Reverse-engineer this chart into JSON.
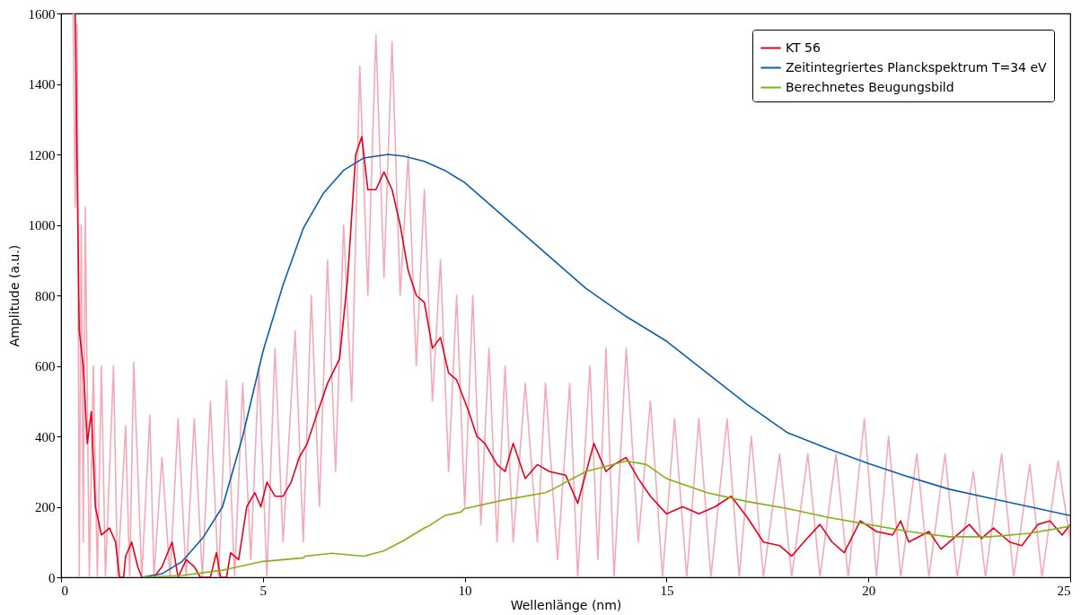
{
  "chart_data": {
    "type": "line",
    "xlabel": "Wellenlänge (nm)",
    "ylabel": "Amplitude (a.u.)",
    "xlim": [
      0,
      25
    ],
    "ylim": [
      0,
      1600
    ],
    "xticks": [
      0,
      5,
      10,
      15,
      20,
      25
    ],
    "yticks": [
      0,
      200,
      400,
      600,
      800,
      1000,
      1200,
      1400,
      1600
    ],
    "grid": false,
    "legend": "top right",
    "marker": "none",
    "line_style": "solid",
    "series": [
      {
        "color": "#f4aab6",
        "x": [
          0.3,
          0.35,
          0.4,
          0.45,
          0.5,
          0.55,
          0.6,
          0.7,
          0.8,
          0.9,
          1.0,
          1.1,
          1.3,
          1.4,
          1.6,
          1.7,
          1.8,
          2.0,
          2.2,
          2.3,
          2.5,
          2.7,
          2.9,
          3.1,
          3.3,
          3.5,
          3.7,
          3.9,
          4.1,
          4.3,
          4.5,
          4.7,
          4.9,
          5.1,
          5.3,
          5.5,
          5.8,
          6.0,
          6.2,
          6.4,
          6.6,
          6.8,
          7.0,
          7.2,
          7.4,
          7.6,
          7.8,
          8.0,
          8.2,
          8.4,
          8.6,
          8.8,
          9.0,
          9.2,
          9.4,
          9.6,
          9.8,
          10.0,
          10.2,
          10.4,
          10.6,
          10.8,
          11.0,
          11.2,
          11.5,
          11.8,
          12.0,
          12.3,
          12.6,
          12.8,
          13.1,
          13.3,
          13.5,
          13.7,
          14.0,
          14.3,
          14.6,
          14.9,
          15.2,
          15.5,
          15.8,
          16.1,
          16.5,
          16.8,
          17.1,
          17.4,
          17.8,
          18.1,
          18.5,
          18.8,
          19.2,
          19.5,
          19.9,
          20.2,
          20.5,
          20.8,
          21.2,
          21.5,
          21.9,
          22.2,
          22.6,
          22.9,
          23.3,
          23.6,
          24.0,
          24.3,
          24.7,
          25
        ],
        "values": [
          1600,
          1050,
          1570,
          0,
          1000,
          100,
          1050,
          0,
          600,
          0,
          600,
          0,
          600,
          0,
          430,
          0,
          610,
          0,
          460,
          0,
          340,
          0,
          450,
          0,
          450,
          0,
          500,
          0,
          560,
          0,
          550,
          50,
          600,
          0,
          650,
          100,
          700,
          100,
          800,
          200,
          900,
          300,
          1000,
          500,
          1450,
          800,
          1540,
          850,
          1520,
          800,
          1200,
          600,
          1100,
          500,
          900,
          300,
          800,
          200,
          800,
          150,
          650,
          100,
          600,
          100,
          550,
          100,
          550,
          50,
          550,
          0,
          600,
          50,
          650,
          0,
          650,
          100,
          500,
          0,
          450,
          0,
          450,
          0,
          450,
          0,
          400,
          0,
          350,
          0,
          350,
          0,
          350,
          0,
          450,
          0,
          400,
          0,
          350,
          0,
          350,
          0,
          300,
          0,
          350,
          0,
          320,
          0,
          330,
          100
        ]
      },
      {
        "name": "KT 56",
        "color": "#e8001c",
        "x": [
          0.35,
          0.45,
          0.55,
          0.65,
          0.75,
          0.85,
          1.0,
          1.2,
          1.35,
          1.45,
          1.55,
          1.6,
          1.75,
          1.9,
          2.0,
          2.3,
          2.5,
          2.75,
          2.9,
          3.1,
          3.3,
          3.45,
          3.7,
          3.85,
          3.95,
          4.1,
          4.2,
          4.4,
          4.6,
          4.8,
          4.95,
          5.1,
          5.3,
          5.5,
          5.7,
          5.9,
          6.1,
          6.3,
          6.6,
          6.9,
          7.1,
          7.3,
          7.45,
          7.6,
          7.8,
          8.0,
          8.2,
          8.4,
          8.6,
          8.8,
          9.0,
          9.2,
          9.4,
          9.6,
          9.8,
          10.0,
          10.1,
          10.3,
          10.5,
          10.8,
          11.0,
          11.2,
          11.5,
          11.8,
          12.1,
          12.5,
          12.8,
          13.2,
          13.5,
          13.7,
          14.0,
          14.3,
          14.6,
          15.0,
          15.4,
          15.8,
          16.2,
          16.6,
          17.0,
          17.4,
          17.8,
          18.1,
          18.4,
          18.8,
          19.1,
          19.4,
          19.8,
          20.2,
          20.6,
          20.8,
          21.0,
          21.5,
          21.8,
          22.1,
          22.5,
          22.8,
          23.1,
          23.5,
          23.8,
          24.2,
          24.5,
          24.8,
          25
        ],
        "values": [
          1600,
          700,
          600,
          380,
          470,
          200,
          120,
          140,
          100,
          0,
          0,
          60,
          100,
          30,
          0,
          0,
          30,
          100,
          0,
          50,
          30,
          0,
          0,
          70,
          0,
          0,
          70,
          50,
          200,
          240,
          200,
          270,
          230,
          230,
          270,
          340,
          380,
          450,
          550,
          620,
          850,
          1200,
          1250,
          1100,
          1100,
          1150,
          1100,
          1000,
          870,
          800,
          780,
          650,
          680,
          580,
          560,
          500,
          470,
          400,
          380,
          320,
          300,
          380,
          280,
          320,
          300,
          290,
          210,
          380,
          300,
          320,
          340,
          280,
          230,
          180,
          200,
          180,
          200,
          230,
          170,
          100,
          90,
          60,
          100,
          150,
          100,
          70,
          160,
          130,
          120,
          160,
          100,
          130,
          80,
          110,
          150,
          110,
          140,
          100,
          90,
          150,
          160,
          120,
          150
        ]
      },
      {
        "name": "Zeitintegriertes Planckspektrum T=34 eV",
        "color": "#0a5fad",
        "x": [
          2,
          2.5,
          3,
          3.5,
          4,
          4.5,
          5,
          5.5,
          6,
          6.5,
          7,
          7.5,
          8.1,
          8.5,
          9,
          9.5,
          10,
          11,
          12,
          13,
          14,
          15,
          16,
          17,
          18,
          19,
          20,
          21,
          22,
          23,
          24,
          25
        ],
        "values": [
          0,
          10,
          45,
          110,
          200,
          400,
          640,
          830,
          990,
          1090,
          1155,
          1190,
          1200,
          1195,
          1180,
          1155,
          1120,
          1020,
          920,
          820,
          740,
          670,
          580,
          490,
          410,
          365,
          323,
          285,
          250,
          225,
          200,
          175
        ]
      },
      {
        "name": "Berechnetes Beugungsbild",
        "color": "#7fb317",
        "x": [
          2,
          3,
          4,
          5,
          6,
          6.05,
          6.7,
          7.5,
          8,
          8.5,
          9,
          9.1,
          9.5,
          9.9,
          10,
          11,
          12,
          12.1,
          13,
          14,
          14.5,
          15,
          16,
          17,
          18,
          19,
          20,
          21,
          22,
          23,
          24,
          25
        ],
        "values": [
          0,
          5,
          20,
          45,
          55,
          60,
          68,
          60,
          75,
          105,
          140,
          145,
          175,
          185,
          195,
          220,
          240,
          245,
          300,
          330,
          320,
          280,
          240,
          215,
          195,
          170,
          150,
          130,
          115,
          115,
          125,
          145
        ]
      }
    ]
  }
}
